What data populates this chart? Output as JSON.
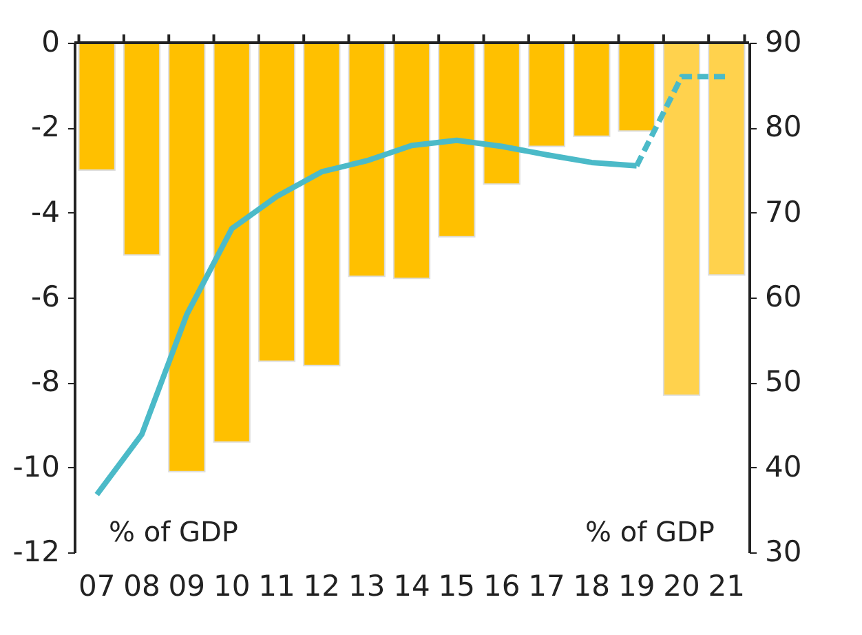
{
  "chart_data": {
    "type": "bar",
    "categories": [
      "07",
      "08",
      "09",
      "10",
      "11",
      "12",
      "13",
      "14",
      "15",
      "16",
      "17",
      "18",
      "19",
      "20",
      "21"
    ],
    "values": [
      -3.0,
      -5.0,
      -10.1,
      -9.4,
      -7.5,
      -7.6,
      -5.5,
      -5.55,
      -4.57,
      -3.33,
      -2.44,
      -2.2,
      -2.08,
      -8.3,
      -5.47
    ],
    "colors": [
      "#ffc000",
      "#ffc000",
      "#ffc000",
      "#ffc000",
      "#ffc000",
      "#ffc000",
      "#ffc000",
      "#ffc000",
      "#ffc000",
      "#ffc000",
      "#ffc000",
      "#ffc000",
      "#ffc000",
      "#ffd24d",
      "#ffd24d"
    ],
    "ylim": [
      -12,
      0
    ],
    "yticks": [
      0,
      -2,
      -4,
      -6,
      -8,
      -10,
      -12
    ],
    "y2lim": [
      30,
      90
    ],
    "y2ticks": [
      30,
      40,
      50,
      60,
      70,
      80,
      90
    ],
    "series": [
      {
        "type": "line",
        "axis": "y2",
        "color": "#4bbac8",
        "line_style": "solid",
        "values": [
          36.8,
          43.9,
          58.0,
          68.1,
          71.9,
          74.8,
          76.1,
          77.9,
          78.5,
          77.8,
          76.8,
          75.9,
          75.5,
          null,
          null
        ]
      },
      {
        "type": "line",
        "axis": "y2",
        "color": "#4bbac8",
        "line_style": "dashed",
        "values": [
          null,
          null,
          null,
          null,
          null,
          null,
          null,
          null,
          null,
          null,
          null,
          null,
          75.5,
          86.0,
          86.0
        ]
      }
    ],
    "annotations": [
      "% of GDP",
      "% of GDP"
    ],
    "grid": false
  }
}
